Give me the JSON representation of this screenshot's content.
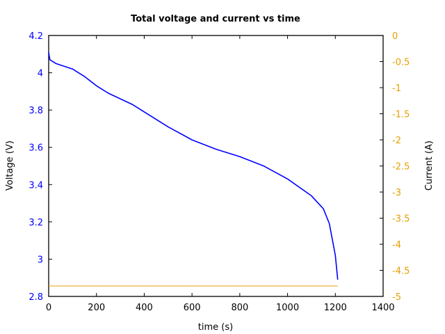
{
  "chart_data": {
    "type": "line",
    "title": "Total voltage and current vs time",
    "xlabel": "time (s)",
    "ylabel": "Voltage (V)",
    "y2label": "Current (A)",
    "xlim": [
      0,
      1400
    ],
    "ylim": [
      2.8,
      4.2
    ],
    "y2lim": [
      -5,
      0
    ],
    "xticks": [
      "0",
      "200",
      "400",
      "600",
      "800",
      "1000",
      "1200",
      "1400"
    ],
    "yticks": [
      "2.8",
      "3",
      "3.2",
      "3.4",
      "3.6",
      "3.8",
      "4",
      "4.2"
    ],
    "y2ticks": [
      "-5",
      "-4.5",
      "-4",
      "-3.5",
      "-3",
      "-2.5",
      "-2",
      "-1.5",
      "-1",
      "-0.5",
      "0"
    ],
    "grid": false,
    "series": [
      {
        "name": "Voltage",
        "axis": "left",
        "color": "#0000ff",
        "x": [
          0,
          5,
          30,
          100,
          150,
          200,
          250,
          350,
          400,
          500,
          600,
          700,
          800,
          900,
          1000,
          1100,
          1150,
          1175,
          1200,
          1210
        ],
        "values": [
          4.11,
          4.07,
          4.05,
          4.02,
          3.98,
          3.93,
          3.89,
          3.83,
          3.79,
          3.71,
          3.64,
          3.59,
          3.55,
          3.5,
          3.43,
          3.34,
          3.27,
          3.19,
          3.02,
          2.89
        ]
      },
      {
        "name": "Current",
        "axis": "right",
        "color": "#e69f00",
        "x": [
          0,
          1210
        ],
        "values": [
          -4.8,
          -4.8
        ]
      }
    ]
  }
}
